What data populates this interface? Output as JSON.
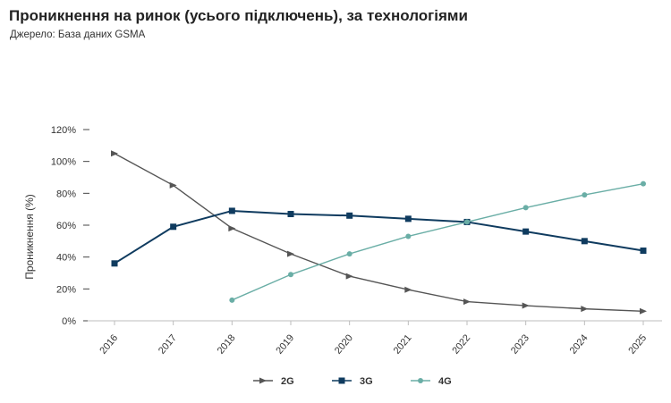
{
  "header": {
    "title": "Проникнення на ринок (усього підключень), за технологіями",
    "subtitle": "Джерело: База даних GSMA"
  },
  "chart_data": {
    "type": "line",
    "title": "Проникнення на ринок (усього підключень), за технологіями",
    "subtitle": "Джерело: База даних GSMA",
    "xlabel": "",
    "ylabel": "Проникнення (%)",
    "x": [
      "2016",
      "2017",
      "2018",
      "2019",
      "2020",
      "2021",
      "2022",
      "2023",
      "2024",
      "2025"
    ],
    "ylim": [
      0,
      120
    ],
    "yticks": [
      "0%",
      "20%",
      "40%",
      "60%",
      "80%",
      "100%",
      "120%"
    ],
    "grid": false,
    "legend_position": "bottom",
    "series": [
      {
        "name": "2G",
        "color": "#555555",
        "marker": "arrow",
        "values": [
          105,
          85,
          58,
          42,
          28,
          19.5,
          12,
          9.5,
          7.5,
          6
        ]
      },
      {
        "name": "3G",
        "color": "#0f3b5f",
        "marker": "square",
        "values": [
          36,
          59,
          69,
          67,
          66,
          64,
          62,
          56,
          50,
          44
        ]
      },
      {
        "name": "4G",
        "color": "#6aaea6",
        "marker": "circle",
        "values": [
          null,
          null,
          13,
          29,
          42,
          53,
          62,
          71,
          79,
          86
        ]
      }
    ]
  }
}
